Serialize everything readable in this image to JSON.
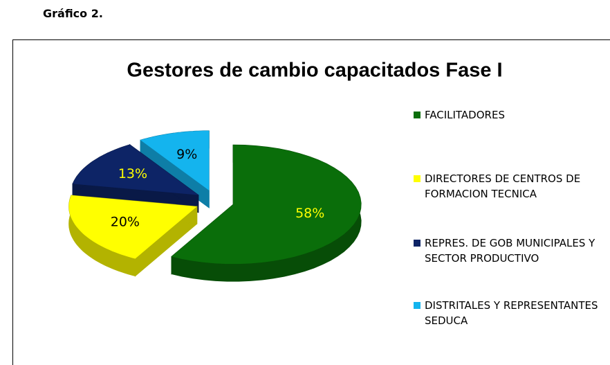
{
  "caption": "Gráfico 2.",
  "chart_data": {
    "type": "pie3d",
    "title": "Gestores de cambio capacitados Fase I",
    "categories": [
      "FACILITADORES",
      "DIRECTORES DE CENTROS DE FORMACION TECNICA",
      "REPRES. DE GOB MUNICIPALES Y SECTOR PRODUCTIVO",
      "DISTRITALES Y REPRESENTANTES SEDUCA"
    ],
    "values": [
      58,
      20,
      13,
      9
    ],
    "value_labels": [
      "58%",
      "20%",
      "13%",
      "9%"
    ],
    "colors": [
      "#0a6e0a",
      "#ffff00",
      "#0d2466",
      "#14b4ee"
    ],
    "label_colors": [
      "#ffff00",
      "#000000",
      "#ffff00",
      "#000000"
    ],
    "legend": "right"
  }
}
